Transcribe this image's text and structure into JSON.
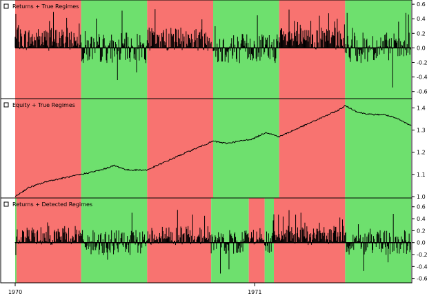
{
  "colors": {
    "bull": "#6ee06e",
    "bear": "#f87370",
    "line": "#000000",
    "frame": "#000000"
  },
  "chart_data": [
    {
      "type": "bar",
      "legend": "Returns + True Regimes",
      "ylim": [
        -0.65,
        0.62
      ],
      "yticks": [
        "0.6",
        "0.4",
        "0.2",
        "0.0",
        "-0.2",
        "-0.4",
        "-0.6"
      ],
      "yticks_values": [
        0.6,
        0.4,
        0.2,
        0.0,
        -0.2,
        -0.4,
        -0.6
      ],
      "regimes": [
        {
          "start": 0,
          "end": 100,
          "state": "bear"
        },
        {
          "start": 100,
          "end": 200,
          "state": "bull"
        },
        {
          "start": 200,
          "end": 300,
          "state": "bear"
        },
        {
          "start": 300,
          "end": 400,
          "state": "bull"
        },
        {
          "start": 400,
          "end": 500,
          "state": "bear"
        },
        {
          "start": 500,
          "end": 600,
          "state": "bull"
        }
      ]
    },
    {
      "type": "line",
      "legend": "Equity + True Regimes",
      "ylim": [
        1.0,
        1.42
      ],
      "yticks": [
        "1.4",
        "1.3",
        "1.2",
        "1.1",
        "1.0"
      ],
      "yticks_values": [
        1.4,
        1.3,
        1.2,
        1.1,
        1.0
      ],
      "equity_points": [
        [
          0,
          1.0
        ],
        [
          20,
          1.04
        ],
        [
          50,
          1.07
        ],
        [
          100,
          1.1
        ],
        [
          130,
          1.12
        ],
        [
          150,
          1.14
        ],
        [
          170,
          1.12
        ],
        [
          200,
          1.12
        ],
        [
          230,
          1.16
        ],
        [
          260,
          1.2
        ],
        [
          300,
          1.25
        ],
        [
          320,
          1.24
        ],
        [
          340,
          1.25
        ],
        [
          360,
          1.26
        ],
        [
          380,
          1.29
        ],
        [
          400,
          1.27
        ],
        [
          430,
          1.31
        ],
        [
          460,
          1.35
        ],
        [
          490,
          1.39
        ],
        [
          500,
          1.41
        ],
        [
          520,
          1.38
        ],
        [
          540,
          1.37
        ],
        [
          560,
          1.37
        ],
        [
          580,
          1.35
        ],
        [
          600,
          1.32
        ]
      ],
      "regimes": [
        {
          "start": 0,
          "end": 100,
          "state": "bear"
        },
        {
          "start": 100,
          "end": 200,
          "state": "bull"
        },
        {
          "start": 200,
          "end": 300,
          "state": "bear"
        },
        {
          "start": 300,
          "end": 400,
          "state": "bull"
        },
        {
          "start": 400,
          "end": 500,
          "state": "bear"
        },
        {
          "start": 500,
          "end": 600,
          "state": "bull"
        }
      ]
    },
    {
      "type": "bar",
      "legend": "Returns + Detected Regimes",
      "ylim": [
        -0.65,
        0.62
      ],
      "yticks": [
        "0.6",
        "0.4",
        "0.2",
        "0.0",
        "-0.2",
        "-0.4",
        "-0.6"
      ],
      "yticks_values": [
        0.6,
        0.4,
        0.2,
        0.0,
        -0.2,
        -0.4,
        -0.6
      ],
      "regimes": [
        {
          "start": 0,
          "end": 2,
          "state": "bull"
        },
        {
          "start": 2,
          "end": 100,
          "state": "bear"
        },
        {
          "start": 100,
          "end": 200,
          "state": "bull"
        },
        {
          "start": 200,
          "end": 297,
          "state": "bear"
        },
        {
          "start": 297,
          "end": 354,
          "state": "bull"
        },
        {
          "start": 354,
          "end": 378,
          "state": "bear"
        },
        {
          "start": 378,
          "end": 392,
          "state": "bull"
        },
        {
          "start": 392,
          "end": 500,
          "state": "bear"
        },
        {
          "start": 500,
          "end": 600,
          "state": "bull"
        }
      ]
    }
  ],
  "x_axis": {
    "n": 600,
    "ticks": [
      {
        "label": "1970",
        "index": 0
      },
      {
        "label": "1971",
        "index": 363
      }
    ]
  }
}
